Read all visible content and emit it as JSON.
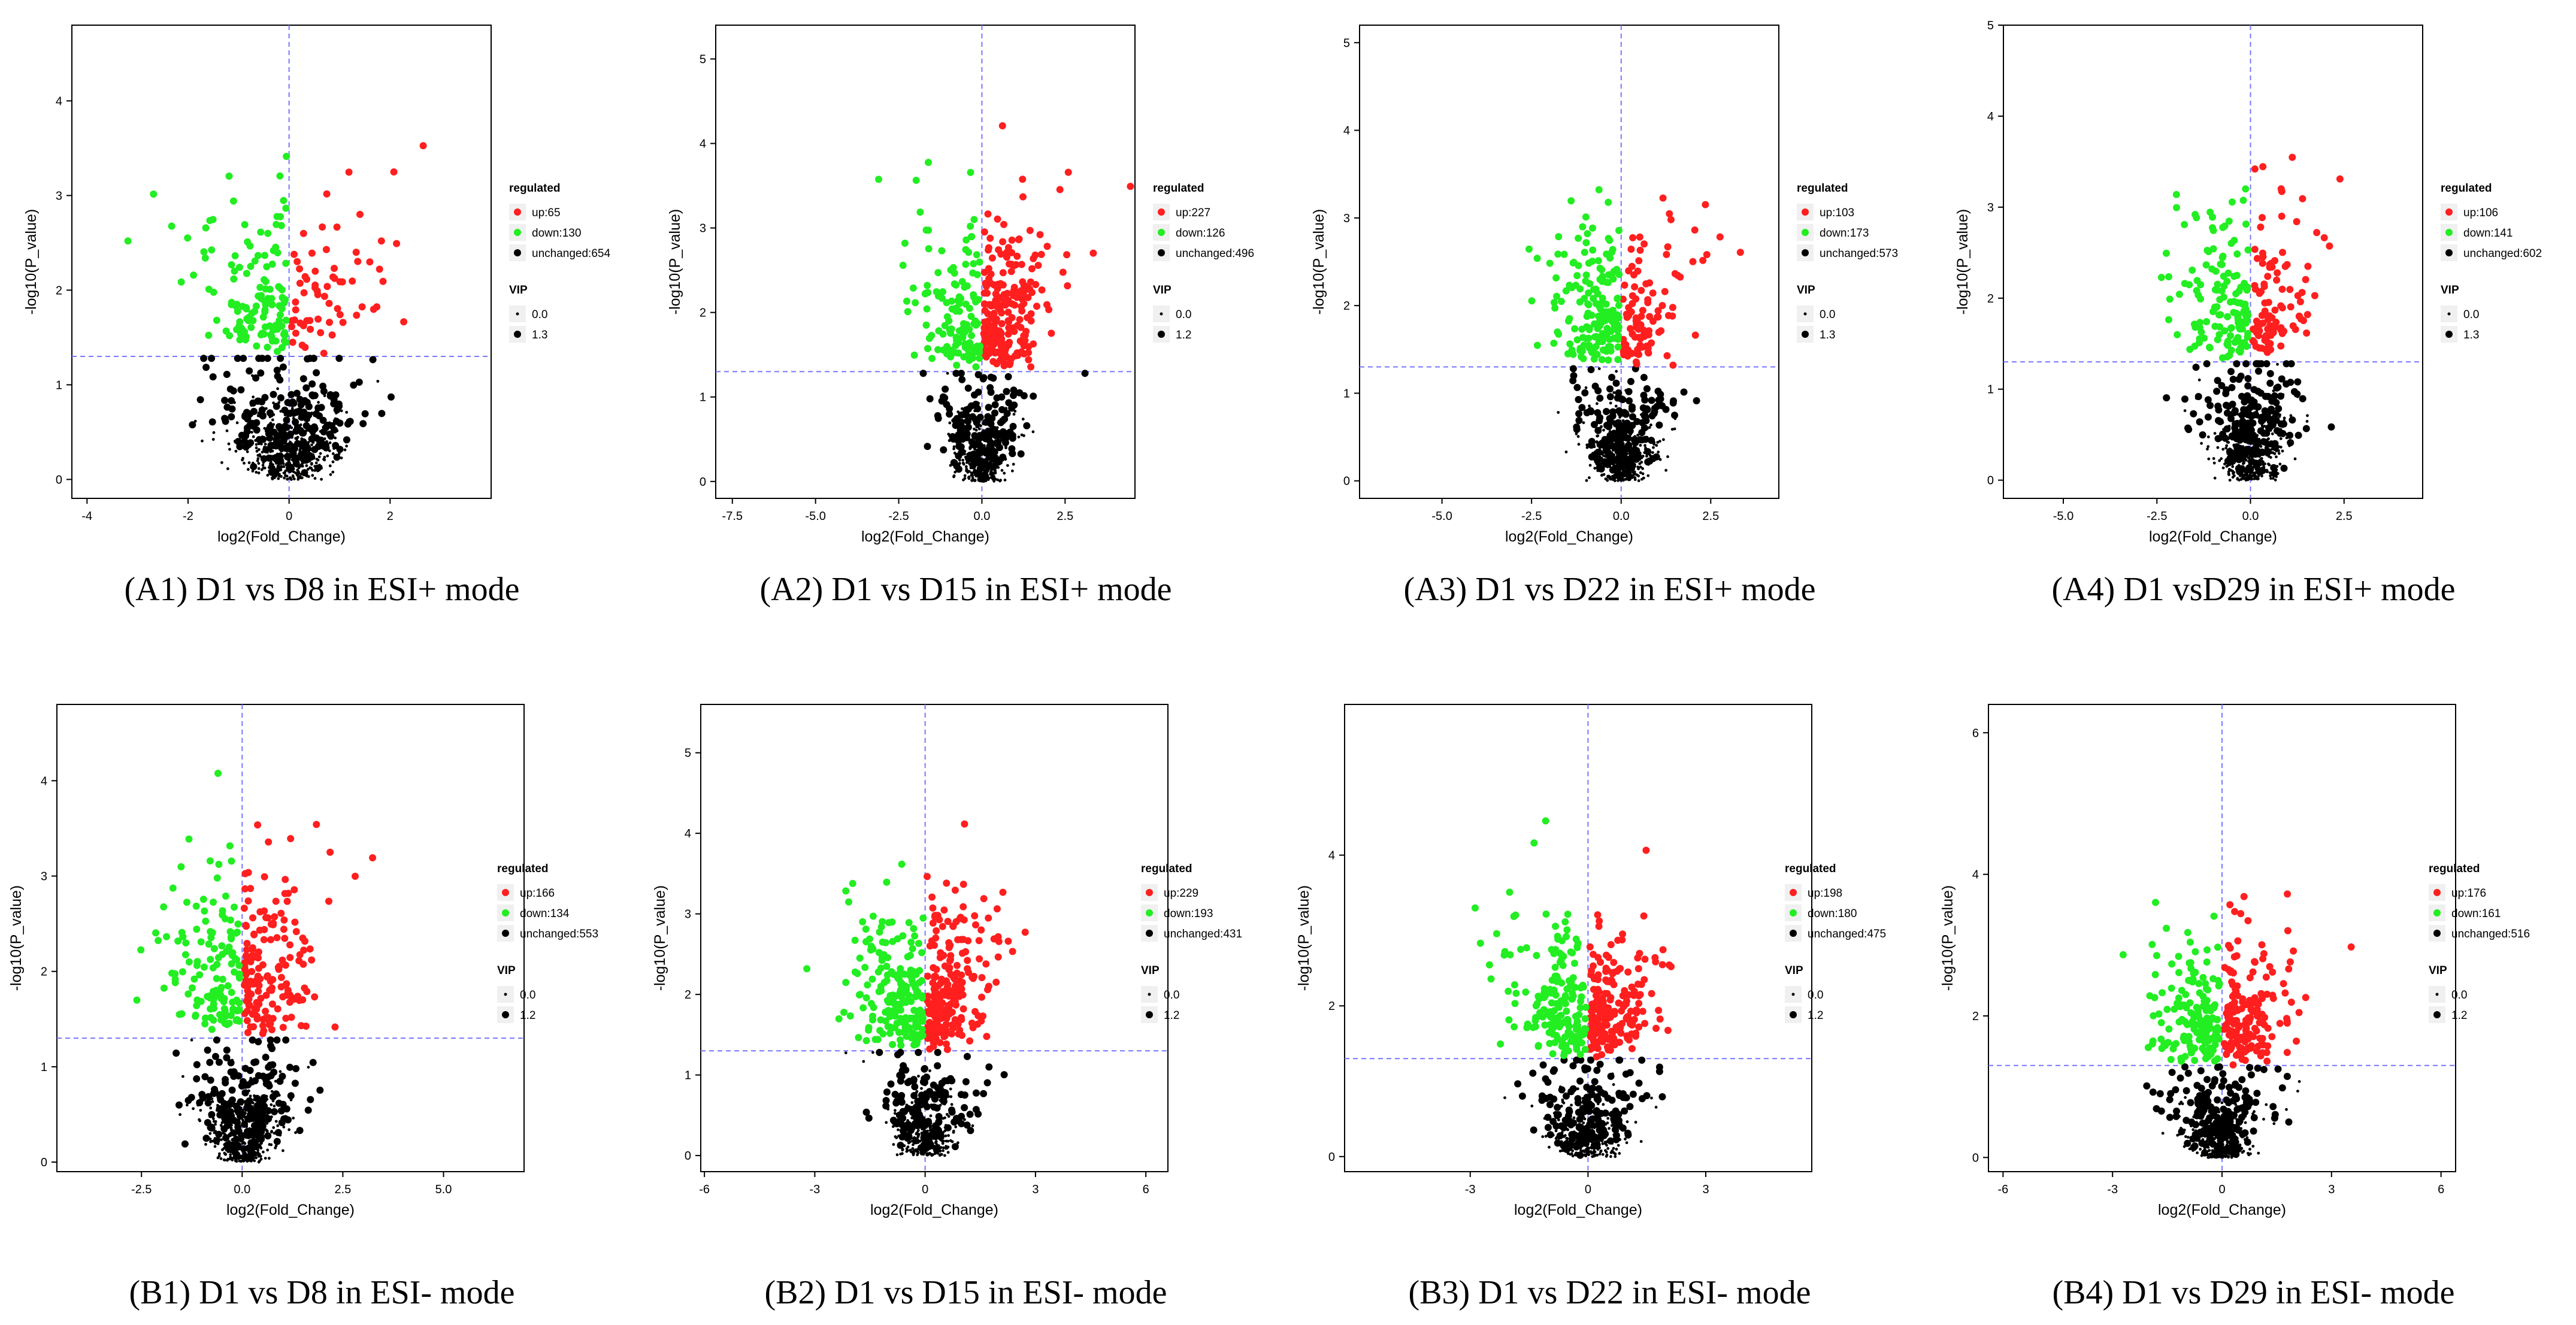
{
  "colors": {
    "up": "#ff1f1f",
    "down": "#22ee22",
    "unchanged": "#000000",
    "threshold": "#7777ff",
    "frame": "#000000"
  },
  "legend_texts": {
    "regulated": "regulated",
    "vip": "VIP",
    "up_prefix": "up:",
    "down_prefix": "down:",
    "unchanged_prefix": "unchanged:"
  },
  "chart_data": [
    {
      "id": "A1",
      "type": "scatter",
      "caption": "(A1) D1 vs D8 in ESI+ mode",
      "xlabel": "log2(Fold_Change)",
      "ylabel": "-log10(P_value)",
      "xlim": [
        -4.3,
        4.0
      ],
      "ylim": [
        -0.2,
        4.8
      ],
      "xticks": [
        -4,
        -2,
        0,
        2
      ],
      "xtick_labels": [
        "-4",
        "-2",
        "0",
        "2"
      ],
      "yticks": [
        0,
        1,
        2,
        3,
        4
      ],
      "ytick_labels": [
        "0",
        "1",
        "2",
        "3",
        "4"
      ],
      "p_threshold": 1.3,
      "fc_threshold": 0,
      "legend": {
        "up": 65,
        "down": 130,
        "unchanged": 654,
        "vip_values": [
          "0.0",
          "1.3"
        ]
      },
      "x_spread": 4.0
    },
    {
      "id": "A2",
      "type": "scatter",
      "caption": "(A2) D1 vs D15 in ESI+ mode",
      "xlabel": "log2(Fold_Change)",
      "ylabel": "-log10(P_value)",
      "xlim": [
        -8.0,
        4.6
      ],
      "ylim": [
        -0.2,
        5.4
      ],
      "xticks": [
        -7.5,
        -5.0,
        -2.5,
        0.0,
        2.5
      ],
      "xtick_labels": [
        "-7.5",
        "-5.0",
        "-2.5",
        "0.0",
        "2.5"
      ],
      "yticks": [
        0,
        1,
        2,
        3,
        4,
        5
      ],
      "ytick_labels": [
        "0",
        "1",
        "2",
        "3",
        "4",
        "5"
      ],
      "p_threshold": 1.3,
      "fc_threshold": 0,
      "legend": {
        "up": 227,
        "down": 126,
        "unchanged": 496,
        "vip_values": [
          "0.0",
          "1.2"
        ]
      },
      "x_spread": 4.5
    },
    {
      "id": "A3",
      "type": "scatter",
      "caption": "(A3) D1 vs D22 in ESI+ mode",
      "xlabel": "log2(Fold_Change)",
      "ylabel": "-log10(P_value)",
      "xlim": [
        -7.3,
        4.4
      ],
      "ylim": [
        -0.2,
        5.2
      ],
      "xticks": [
        -5.0,
        -2.5,
        0.0,
        2.5
      ],
      "xtick_labels": [
        "-5.0",
        "-2.5",
        "0.0",
        "2.5"
      ],
      "yticks": [
        0,
        1,
        2,
        3,
        4,
        5
      ],
      "ytick_labels": [
        "0",
        "1",
        "2",
        "3",
        "4",
        "5"
      ],
      "p_threshold": 1.3,
      "fc_threshold": 0,
      "legend": {
        "up": 103,
        "down": 173,
        "unchanged": 573,
        "vip_values": [
          "0.0",
          "1.3"
        ]
      },
      "x_spread": 4.5
    },
    {
      "id": "A4",
      "type": "scatter",
      "caption": "(A4) D1 vsD29 in ESI+ mode",
      "xlabel": "log2(Fold_Change)",
      "ylabel": "-log10(P_value)",
      "xlim": [
        -6.6,
        4.6
      ],
      "ylim": [
        -0.2,
        5.0
      ],
      "xticks": [
        -5.0,
        -2.5,
        0.0,
        2.5
      ],
      "xtick_labels": [
        "-5.0",
        "-2.5",
        "0.0",
        "2.5"
      ],
      "yticks": [
        0,
        1,
        2,
        3,
        4,
        5
      ],
      "ytick_labels": [
        "0",
        "1",
        "2",
        "3",
        "4",
        "5"
      ],
      "p_threshold": 1.3,
      "fc_threshold": 0,
      "legend": {
        "up": 106,
        "down": 141,
        "unchanged": 602,
        "vip_values": [
          "0.0",
          "1.3"
        ]
      },
      "x_spread": 4.5
    },
    {
      "id": "B1",
      "type": "scatter",
      "caption": "(B1) D1 vs D8 in ESI- mode",
      "xlabel": "log2(Fold_Change)",
      "ylabel": "-log10(P_value)",
      "xlim": [
        -4.6,
        7.0
      ],
      "ylim": [
        -0.1,
        4.8
      ],
      "xticks": [
        -2.5,
        0.0,
        2.5,
        5.0
      ],
      "xtick_labels": [
        "-2.5",
        "0.0",
        "2.5",
        "5.0"
      ],
      "yticks": [
        0,
        1,
        2,
        3,
        4
      ],
      "ytick_labels": [
        "0",
        "1",
        "2",
        "3",
        "4"
      ],
      "p_threshold": 1.3,
      "fc_threshold": 0,
      "legend": {
        "up": 166,
        "down": 134,
        "unchanged": 553,
        "vip_values": [
          "0.0",
          "1.2"
        ]
      },
      "x_spread": 4.5
    },
    {
      "id": "B2",
      "type": "scatter",
      "caption": "(B2) D1 vs D15 in ESI- mode",
      "xlabel": "log2(Fold_Change)",
      "ylabel": "-log10(P_value)",
      "xlim": [
        -6.1,
        6.6
      ],
      "ylim": [
        -0.2,
        5.6
      ],
      "xticks": [
        -6,
        -3,
        0,
        3,
        6
      ],
      "xtick_labels": [
        "-6",
        "-3",
        "0",
        "3",
        "6"
      ],
      "yticks": [
        0,
        1,
        2,
        3,
        4,
        5
      ],
      "ytick_labels": [
        "0",
        "1",
        "2",
        "3",
        "4",
        "5"
      ],
      "p_threshold": 1.3,
      "fc_threshold": 0,
      "legend": {
        "up": 229,
        "down": 193,
        "unchanged": 431,
        "vip_values": [
          "0.0",
          "1.2"
        ]
      },
      "x_spread": 5.5
    },
    {
      "id": "B3",
      "type": "scatter",
      "caption": "(B3) D1 vs D22 in ESI- mode",
      "xlabel": "log2(Fold_Change)",
      "ylabel": "-log10(P_value)",
      "xlim": [
        -6.2,
        5.7
      ],
      "ylim": [
        -0.2,
        6.0
      ],
      "xticks": [
        -3,
        0,
        3
      ],
      "xtick_labels": [
        "-3",
        "0",
        "3"
      ],
      "yticks": [
        0,
        2,
        4
      ],
      "ytick_labels": [
        "0",
        "2",
        "4"
      ],
      "p_threshold": 1.3,
      "fc_threshold": 0,
      "legend": {
        "up": 198,
        "down": 180,
        "unchanged": 475,
        "vip_values": [
          "0.0",
          "1.2"
        ]
      },
      "x_spread": 5.5
    },
    {
      "id": "B4",
      "type": "scatter",
      "caption": "(B4) D1 vs D29 in ESI- mode",
      "xlabel": "log2(Fold_Change)",
      "ylabel": "-log10(P_value)",
      "xlim": [
        -6.4,
        6.4
      ],
      "ylim": [
        -0.2,
        6.4
      ],
      "xticks": [
        -6,
        -3,
        0,
        3,
        6
      ],
      "xtick_labels": [
        "-6",
        "-3",
        "0",
        "3",
        "6"
      ],
      "yticks": [
        0,
        2,
        4,
        6
      ],
      "ytick_labels": [
        "0",
        "2",
        "4",
        "6"
      ],
      "p_threshold": 1.3,
      "fc_threshold": 0,
      "legend": {
        "up": 176,
        "down": 161,
        "unchanged": 516,
        "vip_values": [
          "0.0",
          "1.2"
        ]
      },
      "x_spread": 5.5
    }
  ]
}
